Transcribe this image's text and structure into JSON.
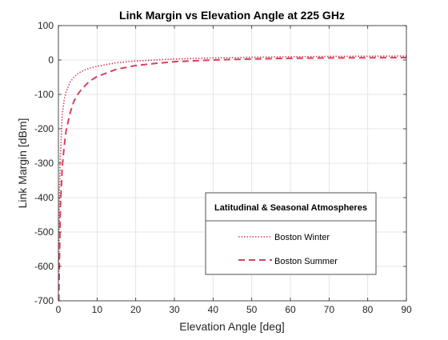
{
  "chart_data": {
    "type": "line",
    "title": "Link Margin vs Elevation Angle at 225 GHz",
    "xlabel": "Elevation Angle [deg]",
    "ylabel": "Link Margin [dBm]",
    "xlim": [
      0,
      90
    ],
    "ylim": [
      -700,
      100
    ],
    "xticks": [
      0,
      10,
      20,
      30,
      40,
      50,
      60,
      70,
      80,
      90
    ],
    "yticks": [
      -700,
      -600,
      -500,
      -400,
      -300,
      -200,
      -100,
      0,
      100
    ],
    "grid": true,
    "legend": {
      "title": "Latitudinal & Seasonal Atmospheres",
      "placement": "lower-right"
    },
    "series": [
      {
        "name": "Boston Winter",
        "color": "#d9415e",
        "style": "dotted",
        "x": [
          0.1,
          0.3,
          0.5,
          1,
          1.5,
          2,
          3,
          4,
          5,
          6,
          8,
          10,
          15,
          20,
          25,
          30,
          40,
          50,
          60,
          70,
          80,
          90
        ],
        "y": [
          -640,
          -380,
          -280,
          -160,
          -115,
          -92,
          -65,
          -50,
          -40,
          -33,
          -24,
          -18,
          -8,
          -3,
          0,
          3,
          6,
          8,
          9.5,
          10.5,
          11,
          11.5
        ]
      },
      {
        "name": "Boston Summer",
        "color": "#d9415e",
        "style": "dashed",
        "x": [
          0.1,
          0.3,
          0.5,
          1,
          1.5,
          2,
          3,
          4,
          5,
          6,
          8,
          10,
          15,
          20,
          25,
          30,
          40,
          50,
          60,
          70,
          80,
          90
        ],
        "y": [
          -700,
          -560,
          -430,
          -310,
          -250,
          -205,
          -155,
          -120,
          -100,
          -85,
          -62,
          -48,
          -27,
          -16,
          -10,
          -5,
          0,
          3,
          5,
          6,
          6.5,
          7
        ]
      }
    ]
  }
}
